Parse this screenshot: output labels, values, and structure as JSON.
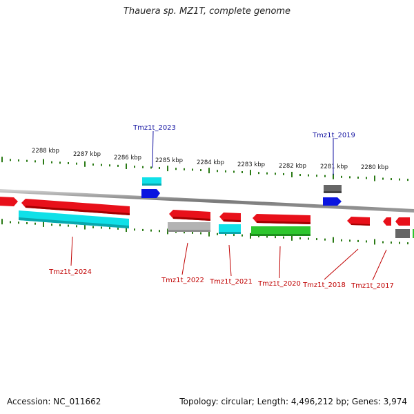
{
  "title": "Thauera sp. MZ1T, complete genome",
  "footer": {
    "accession": "Accession: NC_011662",
    "topology": "Topology: circular; Length: 4,496,212 bp; Genes: 3,974"
  },
  "scale": {
    "kbp_labels": [
      "2288 kbp",
      "2287 kbp",
      "2286 kbp",
      "2285 kbp",
      "2284 kbp",
      "2283 kbp",
      "2282 kbp",
      "2281 kbp",
      "2280 kbp"
    ]
  },
  "genes_top": [
    {
      "label": "Tmz1t_2023"
    },
    {
      "label": "Tmz1t_2019"
    }
  ],
  "genes_bottom": [
    {
      "label": "Tmz1t_2024"
    },
    {
      "label": "Tmz1t_2022"
    },
    {
      "label": "Tmz1t_2021"
    },
    {
      "label": "Tmz1t_2020"
    },
    {
      "label": "Tmz1t_2018"
    },
    {
      "label": "Tmz1t_2017"
    }
  ],
  "colors": {
    "cds": "#e8101a",
    "cds_dark": "#a30000",
    "cyan": "#10e0e8",
    "blue": "#0a14e0",
    "gray": "#666666",
    "lightgray": "#b3b3b3",
    "green": "#2ec62e",
    "tick": "#2a7a15",
    "backbone": "#888888",
    "label_top": "#1010a0",
    "label_bottom": "#c00000"
  }
}
